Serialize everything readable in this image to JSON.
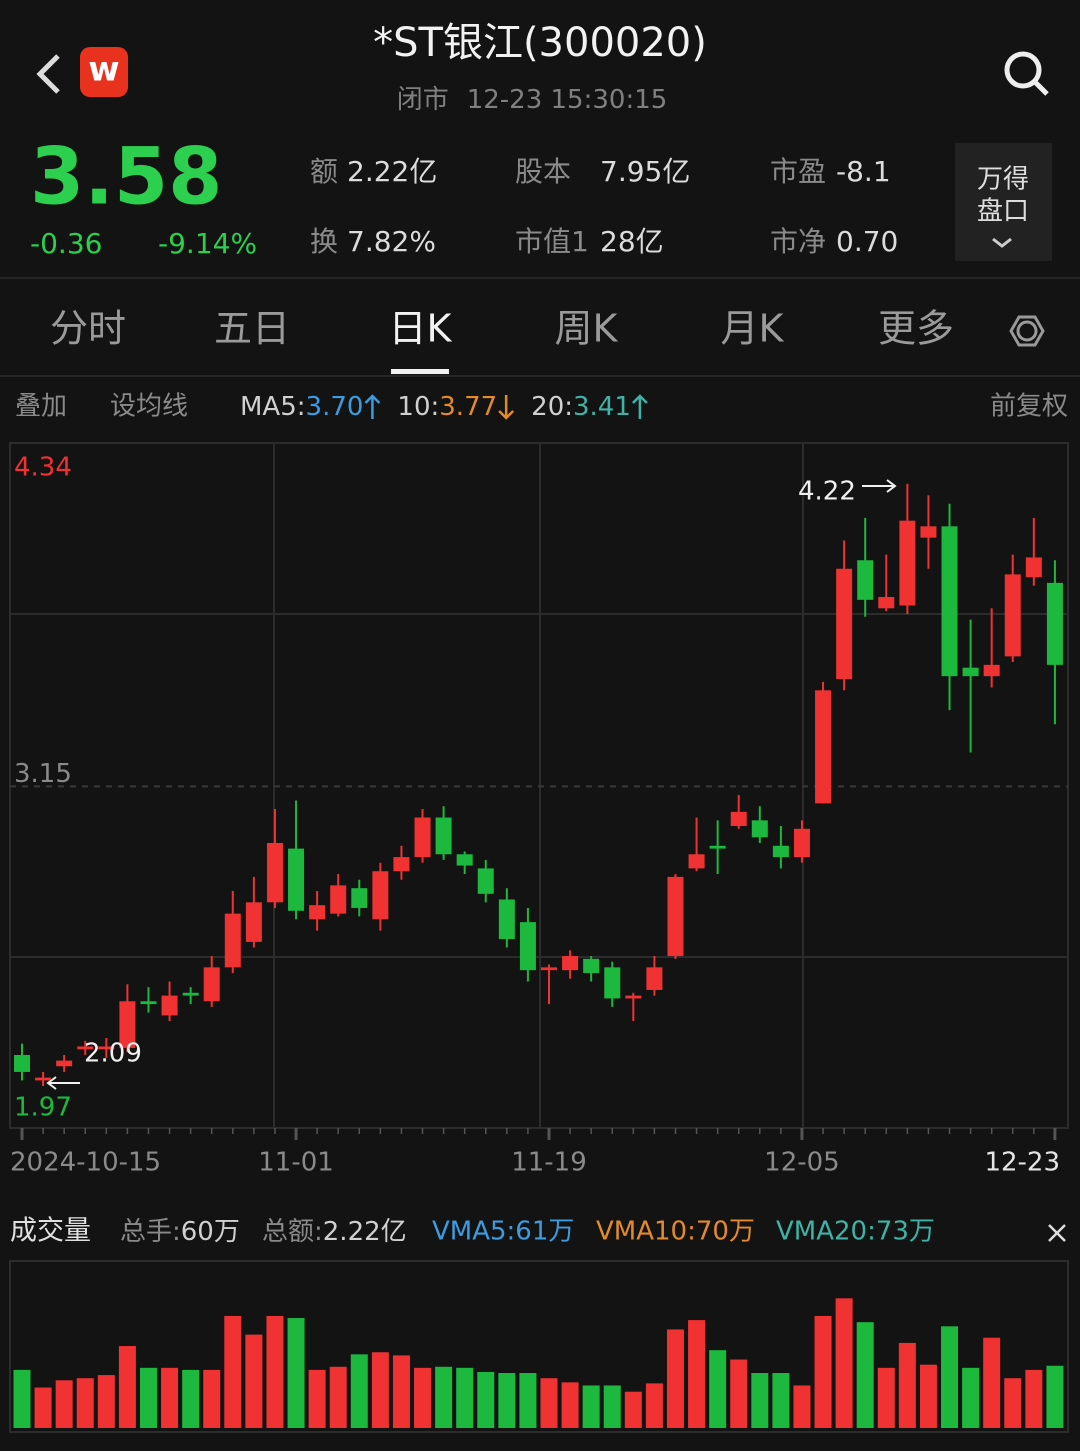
{
  "header": {
    "logo": "w",
    "title": "*ST银江(300020)",
    "status": "闭市",
    "time": "12-23 15:30:15"
  },
  "quote": {
    "price": "3.58",
    "change": "-0.36",
    "change_pct": "-9.14%"
  },
  "stats": [
    {
      "label": "额",
      "value": "2.22亿"
    },
    {
      "label": "股本",
      "value": "7.95亿"
    },
    {
      "label": "市盈",
      "value": "-8.1"
    },
    {
      "label": "换",
      "value": "7.82%"
    },
    {
      "label": "市值1",
      "value": "28亿"
    },
    {
      "label": "市净",
      "value": "0.70"
    }
  ],
  "order_book_button": [
    "万得",
    "盘口"
  ],
  "tabs": [
    "分时",
    "五日",
    "日K",
    "周K",
    "月K",
    "更多"
  ],
  "active_tab": 2,
  "toolbar": {
    "overlay": "叠加",
    "set_ma": "设均线",
    "ma": [
      {
        "label": "MA5:",
        "value": "3.70",
        "color": "#3d9be0",
        "trend": "up"
      },
      {
        "label": "10:",
        "value": "3.77",
        "color": "#e38a2a",
        "trend": "down"
      },
      {
        "label": "20:",
        "value": "3.41",
        "color": "#3fb3a5",
        "trend": "up"
      }
    ],
    "adjust": "前复权"
  },
  "volume_header": {
    "title": "成交量",
    "items": [
      {
        "label": "总手:",
        "value": "60万"
      },
      {
        "label": "总额:",
        "value": "2.22亿"
      }
    ],
    "vma": [
      {
        "text": "VMA5:61万",
        "color": "#3d9be0"
      },
      {
        "text": "VMA10:70万",
        "color": "#e38a2a"
      },
      {
        "text": "VMA20:73万",
        "color": "#3fb3a5"
      }
    ]
  },
  "chart_data": [
    {
      "type": "candlestick",
      "up_color": "#f03232",
      "down_color": "#1db83e",
      "grid": true,
      "categories": [
        "2024-10-15",
        null,
        null,
        null,
        null,
        null,
        null,
        null,
        null,
        null,
        null,
        null,
        null,
        "11-01",
        null,
        null,
        null,
        null,
        null,
        null,
        null,
        null,
        null,
        null,
        null,
        "11-19",
        null,
        null,
        null,
        null,
        null,
        null,
        null,
        null,
        null,
        null,
        null,
        "12-05",
        null,
        null,
        null,
        null,
        null,
        null,
        null,
        null,
        null,
        null,
        null,
        "12-23"
      ],
      "open": [
        2.2,
        2.11,
        2.16,
        2.22,
        2.22,
        2.225,
        2.39,
        2.34,
        2.42,
        2.39,
        2.51,
        2.6,
        2.74,
        2.93,
        2.68,
        2.7,
        2.79,
        2.68,
        2.85,
        2.9,
        3.04,
        2.91,
        2.86,
        2.75,
        2.67,
        2.5,
        2.5,
        2.54,
        2.51,
        2.4,
        2.43,
        2.55,
        2.86,
        2.94,
        3.01,
        3.03,
        2.94,
        2.9,
        3.09,
        3.53,
        3.95,
        3.78,
        3.79,
        4.03,
        4.07,
        3.57,
        3.54,
        3.61,
        3.89,
        3.87
      ],
      "high": [
        2.24,
        2.14,
        2.2,
        2.25,
        2.26,
        2.45,
        2.44,
        2.46,
        2.44,
        2.55,
        2.78,
        2.83,
        3.07,
        3.1,
        2.78,
        2.84,
        2.82,
        2.88,
        2.94,
        3.07,
        3.08,
        2.92,
        2.89,
        2.79,
        2.72,
        2.52,
        2.57,
        2.55,
        2.53,
        2.42,
        2.55,
        2.84,
        3.04,
        3.03,
        3.12,
        3.08,
        3.01,
        3.03,
        3.52,
        4.02,
        4.1,
        3.97,
        4.22,
        4.18,
        4.15,
        3.74,
        3.78,
        3.97,
        4.1,
        3.95
      ],
      "low": [
        2.11,
        2.09,
        2.14,
        2.2,
        2.19,
        2.21,
        2.35,
        2.32,
        2.38,
        2.37,
        2.49,
        2.58,
        2.72,
        2.68,
        2.64,
        2.69,
        2.69,
        2.64,
        2.82,
        2.88,
        2.89,
        2.84,
        2.74,
        2.58,
        2.46,
        2.38,
        2.47,
        2.46,
        2.37,
        2.32,
        2.41,
        2.54,
        2.85,
        2.84,
        3.0,
        2.95,
        2.86,
        2.88,
        3.09,
        3.49,
        3.75,
        3.77,
        3.76,
        3.92,
        3.42,
        3.27,
        3.5,
        3.59,
        3.86,
        3.37
      ],
      "close": [
        2.14,
        2.12,
        2.18,
        2.23,
        2.23,
        2.39,
        2.38,
        2.41,
        2.41,
        2.51,
        2.7,
        2.74,
        2.95,
        2.71,
        2.73,
        2.8,
        2.72,
        2.85,
        2.9,
        3.04,
        2.91,
        2.87,
        2.77,
        2.61,
        2.5,
        2.51,
        2.55,
        2.49,
        2.4,
        2.41,
        2.51,
        2.83,
        2.91,
        2.93,
        3.06,
        2.97,
        2.9,
        3.0,
        3.49,
        3.92,
        3.81,
        3.82,
        4.09,
        4.07,
        3.54,
        3.54,
        3.58,
        3.9,
        3.96,
        3.58
      ],
      "ylim": [
        1.97,
        4.34
      ],
      "yticks": [
        1.97,
        3.15,
        4.34
      ],
      "ytick_colors": [
        "#1db83e",
        "#8a8a8a",
        "#f03232"
      ],
      "annotations": [
        4.22,
        2.09
      ]
    },
    {
      "type": "bar",
      "ylim": [
        0,
        160
      ],
      "values": [
        56,
        39,
        46,
        48,
        51,
        79,
        58,
        58,
        56,
        56,
        108,
        90,
        108,
        106,
        56,
        59,
        71,
        73,
        70,
        58,
        59,
        58,
        54,
        53,
        53,
        48,
        44,
        41,
        41,
        35,
        43,
        95,
        104,
        75,
        66,
        53,
        53,
        41,
        108,
        125,
        102,
        58,
        82,
        61,
        98,
        58,
        87,
        48,
        56,
        60
      ]
    }
  ]
}
